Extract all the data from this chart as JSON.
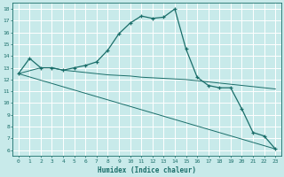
{
  "xlabel": "Humidex (Indice chaleur)",
  "xlim": [
    -0.5,
    23.5
  ],
  "ylim": [
    5.5,
    18.5
  ],
  "xticks": [
    0,
    1,
    2,
    3,
    4,
    5,
    6,
    7,
    8,
    9,
    10,
    11,
    12,
    13,
    14,
    15,
    16,
    17,
    18,
    19,
    20,
    21,
    22,
    23
  ],
  "yticks": [
    6,
    7,
    8,
    9,
    10,
    11,
    12,
    13,
    14,
    15,
    16,
    17,
    18
  ],
  "bg_color": "#c8eaea",
  "grid_bg_color": "#dce8e8",
  "line_color": "#1a6e6a",
  "grid_color": "#ffffff",
  "line1_x": [
    0,
    1,
    2,
    3,
    4,
    5,
    6,
    7,
    8,
    9,
    10,
    11,
    12,
    13,
    14,
    15,
    16,
    17,
    18,
    19,
    20,
    21,
    22,
    23
  ],
  "line1_y": [
    12.5,
    13.8,
    13.0,
    13.0,
    12.8,
    13.0,
    13.2,
    13.5,
    14.5,
    15.9,
    16.8,
    17.4,
    17.2,
    17.3,
    18.0,
    14.6,
    12.2,
    11.5,
    11.3,
    11.3,
    9.5,
    7.5,
    7.2,
    6.1
  ],
  "line2_x": [
    0,
    2,
    3,
    4,
    5,
    6,
    7,
    8,
    9,
    10,
    11,
    12,
    13,
    14,
    15,
    16,
    17,
    18,
    19,
    20,
    21,
    22,
    23
  ],
  "line2_y": [
    12.5,
    13.0,
    13.0,
    12.8,
    12.7,
    12.6,
    12.5,
    12.4,
    12.35,
    12.3,
    12.2,
    12.15,
    12.1,
    12.05,
    12.0,
    11.9,
    11.8,
    11.7,
    11.6,
    11.5,
    11.4,
    11.3,
    11.2
  ],
  "line3_x": [
    0,
    23
  ],
  "line3_y": [
    12.5,
    6.1
  ]
}
